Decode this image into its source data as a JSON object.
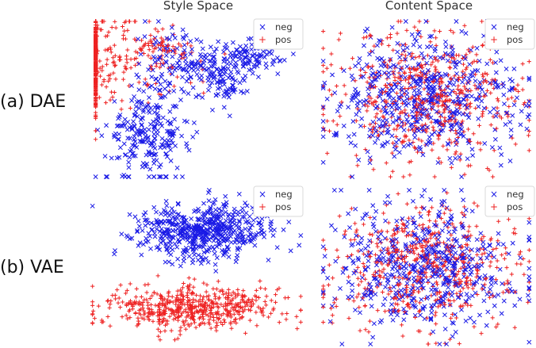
{
  "column_titles": [
    "Style Space",
    "Content Space"
  ],
  "row_labels": [
    "(a) DAE",
    "(b) VAE"
  ],
  "colors": {
    "neg": "#1a1ae6",
    "pos": "#ee2222"
  },
  "chart_data": [
    {
      "type": "scatter",
      "panel": "(a) DAE — Style Space",
      "title": "Style Space",
      "axes_visible": false,
      "legend": {
        "position": "top-right",
        "entries": [
          "neg",
          "pos"
        ]
      },
      "series": [
        {
          "name": "neg",
          "marker": "x",
          "color": "#1a1ae6",
          "n_points": 560,
          "clusters": [
            {
              "cx": 0.26,
              "cy": 0.27,
              "sx": 0.1,
              "sy": 0.14,
              "weight": 0.42
            },
            {
              "cx": 0.37,
              "cy": 0.72,
              "sx": 0.09,
              "sy": 0.13,
              "weight": 0.15
            },
            {
              "cx": 0.51,
              "cy": 0.72,
              "sx": 0.1,
              "sy": 0.06,
              "weight": 0.13
            },
            {
              "cx": 0.75,
              "cy": 0.77,
              "sx": 0.08,
              "sy": 0.05,
              "weight": 0.18
            },
            {
              "cx": 0.62,
              "cy": 0.6,
              "sx": 0.06,
              "sy": 0.07,
              "weight": 0.12
            }
          ]
        },
        {
          "name": "pos",
          "marker": "+",
          "color": "#ee2222",
          "n_points": 520,
          "clusters": [
            {
              "cx": -0.12,
              "cy": 0.75,
              "sx": 0.3,
              "sy": 0.15,
              "weight": 0.92
            },
            {
              "cx": 0.33,
              "cy": 0.82,
              "sx": 0.05,
              "sy": 0.05,
              "weight": 0.08
            }
          ]
        }
      ]
    },
    {
      "type": "scatter",
      "panel": "(a) DAE — Content Space",
      "title": "Content Space",
      "axes_visible": false,
      "legend": {
        "position": "top-right",
        "entries": [
          "neg",
          "pos"
        ]
      },
      "series": [
        {
          "name": "neg",
          "marker": "x",
          "color": "#1a1ae6",
          "n_points": 560,
          "clusters": [
            {
              "cx": 0.5,
              "cy": 0.5,
              "sx": 0.22,
              "sy": 0.2,
              "weight": 1.0
            }
          ]
        },
        {
          "name": "pos",
          "marker": "+",
          "color": "#ee2222",
          "n_points": 560,
          "clusters": [
            {
              "cx": 0.5,
              "cy": 0.5,
              "sx": 0.22,
              "sy": 0.2,
              "weight": 1.0
            }
          ]
        }
      ]
    },
    {
      "type": "scatter",
      "panel": "(b) VAE — Style Space",
      "axes_visible": false,
      "legend": {
        "position": "top-right",
        "entries": [
          "neg",
          "pos"
        ]
      },
      "series": [
        {
          "name": "neg",
          "marker": "x",
          "color": "#1a1ae6",
          "n_points": 560,
          "clusters": [
            {
              "cx": 0.52,
              "cy": 0.73,
              "sx": 0.16,
              "sy": 0.09,
              "weight": 1.0
            }
          ]
        },
        {
          "name": "pos",
          "marker": "+",
          "color": "#ee2222",
          "n_points": 560,
          "clusters": [
            {
              "cx": 0.48,
              "cy": 0.24,
              "sx": 0.22,
              "sy": 0.07,
              "weight": 1.0
            }
          ]
        }
      ]
    },
    {
      "type": "scatter",
      "panel": "(b) VAE — Content Space",
      "axes_visible": false,
      "legend": {
        "position": "top-right",
        "entries": [
          "neg",
          "pos"
        ]
      },
      "series": [
        {
          "name": "neg",
          "marker": "x",
          "color": "#1a1ae6",
          "n_points": 560,
          "clusters": [
            {
              "cx": 0.5,
              "cy": 0.5,
              "sx": 0.22,
              "sy": 0.2,
              "weight": 1.0
            }
          ]
        },
        {
          "name": "pos",
          "marker": "+",
          "color": "#ee2222",
          "n_points": 560,
          "clusters": [
            {
              "cx": 0.5,
              "cy": 0.5,
              "sx": 0.22,
              "sy": 0.2,
              "weight": 1.0
            }
          ]
        }
      ]
    }
  ]
}
